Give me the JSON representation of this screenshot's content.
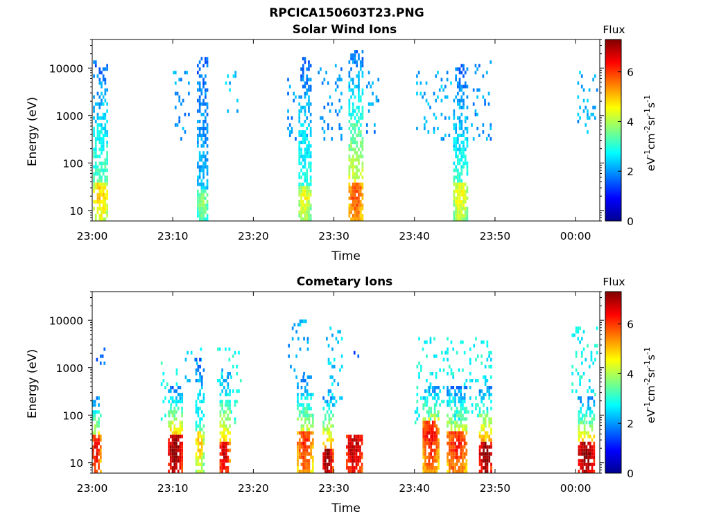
{
  "figure_title": "RPCICA150603T23.PNG",
  "colors": {
    "colormap": "jet",
    "stops": [
      "#00008f",
      "#0000ff",
      "#0080ff",
      "#00ffff",
      "#80ff80",
      "#ffff00",
      "#ff8000",
      "#ff0000",
      "#800000"
    ]
  },
  "chart_data": [
    {
      "type": "heatmap",
      "title": "Solar Wind Ions",
      "xlabel": "Time",
      "ylabel": "Energy (eV)",
      "x_ticks": [
        "23:00",
        "23:10",
        "23:20",
        "23:30",
        "23:40",
        "23:50",
        "00:00"
      ],
      "x_range_minutes": [
        0,
        63
      ],
      "y_scale": "log",
      "y_ticks": [
        "10",
        "100",
        "1000",
        "10000"
      ],
      "y_range_ev": [
        6,
        40000
      ],
      "colorbar": {
        "label": "Flux",
        "unit": "eV-1cm-2sr-1s-1",
        "range": [
          0,
          7.3
        ],
        "ticks": [
          "0",
          "2",
          "4",
          "6"
        ]
      },
      "bursts": [
        {
          "t_start": 0.1,
          "t_end": 1.9,
          "e_min": 6,
          "e_max": 15000,
          "peak_flux": 5.0,
          "peak_energy": 20
        },
        {
          "t_start": 13.0,
          "t_end": 14.4,
          "e_min": 6,
          "e_max": 17000,
          "peak_flux": 3.8,
          "peak_energy": 15
        },
        {
          "t_start": 25.6,
          "t_end": 27.2,
          "e_min": 6,
          "e_max": 18000,
          "peak_flux": 4.5,
          "peak_energy": 18
        },
        {
          "t_start": 31.8,
          "t_end": 33.6,
          "e_min": 6,
          "e_max": 26000,
          "peak_flux": 6.0,
          "peak_energy": 22
        },
        {
          "t_start": 44.8,
          "t_end": 46.6,
          "e_min": 6,
          "e_max": 13000,
          "peak_flux": 4.6,
          "peak_energy": 20
        }
      ],
      "scatter_regions": [
        {
          "t_start": 10.0,
          "t_end": 12.0,
          "e_min": 300,
          "e_max": 9000,
          "flux": 2.0
        },
        {
          "t_start": 16.5,
          "t_end": 18.0,
          "e_min": 600,
          "e_max": 9000,
          "flux": 2.3
        },
        {
          "t_start": 24.2,
          "t_end": 25.3,
          "e_min": 300,
          "e_max": 6000,
          "flux": 2.0
        },
        {
          "t_start": 28.0,
          "t_end": 31.0,
          "e_min": 300,
          "e_max": 13000,
          "flux": 2.0
        },
        {
          "t_start": 34.0,
          "t_end": 35.5,
          "e_min": 400,
          "e_max": 9000,
          "flux": 2.0
        },
        {
          "t_start": 40.2,
          "t_end": 44.5,
          "e_min": 300,
          "e_max": 9000,
          "flux": 2.2
        },
        {
          "t_start": 47.0,
          "t_end": 49.5,
          "e_min": 300,
          "e_max": 14000,
          "flux": 2.0
        },
        {
          "t_start": 60.2,
          "t_end": 62.6,
          "e_min": 400,
          "e_max": 11000,
          "flux": 2.2
        }
      ]
    },
    {
      "type": "heatmap",
      "title": "Cometary Ions",
      "xlabel": "Time",
      "ylabel": "Energy (eV)",
      "x_ticks": [
        "23:00",
        "23:10",
        "23:20",
        "23:30",
        "23:40",
        "23:50",
        "00:00"
      ],
      "x_range_minutes": [
        0,
        63
      ],
      "y_scale": "log",
      "y_ticks": [
        "10",
        "100",
        "1000",
        "10000"
      ],
      "y_range_ev": [
        6,
        40000
      ],
      "colorbar": {
        "label": "Flux",
        "unit": "eV-1cm-2sr-1s-1",
        "range": [
          0,
          7.3
        ],
        "ticks": [
          "0",
          "2",
          "4",
          "6"
        ]
      },
      "bursts": [
        {
          "t_start": 0.0,
          "t_end": 1.0,
          "e_min": 6,
          "e_max": 300,
          "peak_flux": 6.6,
          "peak_energy": 20
        },
        {
          "t_start": 9.4,
          "t_end": 11.2,
          "e_min": 6,
          "e_max": 400,
          "peak_flux": 7.3,
          "peak_energy": 20
        },
        {
          "t_start": 12.8,
          "t_end": 13.8,
          "e_min": 6,
          "e_max": 1500,
          "peak_flux": 5.0,
          "peak_energy": 25
        },
        {
          "t_start": 15.8,
          "t_end": 17.0,
          "e_min": 6,
          "e_max": 1000,
          "peak_flux": 6.8,
          "peak_energy": 15
        },
        {
          "t_start": 25.4,
          "t_end": 27.3,
          "e_min": 6,
          "e_max": 700,
          "peak_flux": 6.2,
          "peak_energy": 25
        },
        {
          "t_start": 28.6,
          "t_end": 29.8,
          "e_min": 6,
          "e_max": 300,
          "peak_flux": 7.3,
          "peak_energy": 12
        },
        {
          "t_start": 31.5,
          "t_end": 33.6,
          "e_min": 6,
          "e_max": 40,
          "peak_flux": 7.0,
          "peak_energy": 20
        },
        {
          "t_start": 41.0,
          "t_end": 43.0,
          "e_min": 6,
          "e_max": 450,
          "peak_flux": 6.5,
          "peak_energy": 40
        },
        {
          "t_start": 44.0,
          "t_end": 46.5,
          "e_min": 6,
          "e_max": 450,
          "peak_flux": 6.3,
          "peak_energy": 25
        },
        {
          "t_start": 48.0,
          "t_end": 49.6,
          "e_min": 6,
          "e_max": 450,
          "peak_flux": 7.3,
          "peak_energy": 15
        },
        {
          "t_start": 60.3,
          "t_end": 62.4,
          "e_min": 6,
          "e_max": 250,
          "peak_flux": 7.3,
          "peak_energy": 15
        }
      ],
      "scatter_regions": [
        {
          "t_start": 0.0,
          "t_end": 1.5,
          "e_min": 1200,
          "e_max": 3000,
          "flux": 1.8
        },
        {
          "t_start": 8.5,
          "t_end": 10.5,
          "e_min": 60,
          "e_max": 1400,
          "flux": 3.0
        },
        {
          "t_start": 11.5,
          "t_end": 13.5,
          "e_min": 500,
          "e_max": 2800,
          "flux": 2.4
        },
        {
          "t_start": 15.5,
          "t_end": 18.5,
          "e_min": 60,
          "e_max": 2500,
          "flux": 3.0
        },
        {
          "t_start": 24.3,
          "t_end": 26.8,
          "e_min": 600,
          "e_max": 9500,
          "flux": 2.2
        },
        {
          "t_start": 29.0,
          "t_end": 31.0,
          "e_min": 150,
          "e_max": 7000,
          "flux": 2.4
        },
        {
          "t_start": 31.5,
          "t_end": 33.5,
          "e_min": 1500,
          "e_max": 2800,
          "flux": 1.6
        },
        {
          "t_start": 40.0,
          "t_end": 49.5,
          "e_min": 60,
          "e_max": 4200,
          "flux": 2.8
        },
        {
          "t_start": 59.5,
          "t_end": 62.7,
          "e_min": 60,
          "e_max": 7000,
          "flux": 2.8
        }
      ]
    }
  ]
}
